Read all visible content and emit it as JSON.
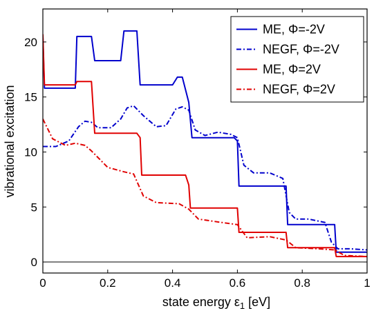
{
  "chart_data": {
    "type": "line",
    "xlabel_main": "state energy ε",
    "xlabel_sub": "1",
    "xlabel_unit": " [eV]",
    "ylabel": "vibrational excitation",
    "xlim": [
      0,
      1
    ],
    "ylim": [
      -1,
      23
    ],
    "xticks": [
      0,
      0.2,
      0.4,
      0.6,
      0.8,
      1
    ],
    "xtick_labels": [
      "0",
      "0.2",
      "0.4",
      "0.6",
      "0.8",
      "1"
    ],
    "yticks": [
      0,
      5,
      10,
      15,
      20
    ],
    "ytick_labels": [
      "0",
      "5",
      "10",
      "15",
      "20"
    ],
    "grid": false,
    "legend_position": "top-right",
    "zero_line": true,
    "series": [
      {
        "name": "ME, Φ=-2V",
        "color": "#0000cc",
        "dash": "solid",
        "x": [
          0,
          0.005,
          0.1,
          0.105,
          0.15,
          0.16,
          0.24,
          0.25,
          0.29,
          0.3,
          0.4,
          0.415,
          0.43,
          0.45,
          0.46,
          0.59,
          0.6,
          0.605,
          0.75,
          0.755,
          0.9,
          0.905,
          1.0
        ],
        "y": [
          20.5,
          15.8,
          15.8,
          20.5,
          20.5,
          18.3,
          18.3,
          21.0,
          21.0,
          16.1,
          16.1,
          16.8,
          16.8,
          14.5,
          11.3,
          11.3,
          11.0,
          6.9,
          6.9,
          3.4,
          3.4,
          0.9,
          0.9
        ]
      },
      {
        "name": "NEGF, Φ=-2V",
        "color": "#0000cc",
        "dash": "dashdot",
        "x": [
          0,
          0.04,
          0.08,
          0.11,
          0.13,
          0.15,
          0.17,
          0.21,
          0.24,
          0.26,
          0.28,
          0.31,
          0.35,
          0.38,
          0.41,
          0.43,
          0.45,
          0.47,
          0.5,
          0.54,
          0.56,
          0.58,
          0.6,
          0.62,
          0.65,
          0.7,
          0.74,
          0.76,
          0.78,
          0.82,
          0.87,
          0.89,
          0.91,
          0.95,
          1.0
        ],
        "y": [
          10.5,
          10.5,
          11.0,
          12.3,
          12.8,
          12.7,
          12.2,
          12.2,
          13.0,
          14.0,
          14.2,
          13.3,
          12.3,
          12.4,
          13.9,
          14.1,
          13.8,
          12.0,
          11.5,
          11.8,
          11.7,
          11.6,
          11.3,
          8.8,
          8.1,
          8.1,
          7.6,
          4.5,
          3.9,
          3.9,
          3.6,
          1.8,
          1.2,
          1.2,
          1.1
        ]
      },
      {
        "name": "ME, Φ=2V",
        "color": "#e00000",
        "dash": "solid",
        "x": [
          0,
          0.005,
          0.1,
          0.105,
          0.15,
          0.16,
          0.29,
          0.3,
          0.305,
          0.44,
          0.45,
          0.455,
          0.6,
          0.605,
          0.75,
          0.755,
          0.9,
          0.905,
          1.0
        ],
        "y": [
          20.7,
          16.1,
          16.1,
          16.4,
          16.4,
          11.7,
          11.7,
          11.3,
          7.9,
          7.9,
          7.0,
          4.9,
          4.9,
          2.7,
          2.7,
          1.3,
          1.3,
          0.5,
          0.5
        ]
      },
      {
        "name": "NEGF, Φ=2V",
        "color": "#e00000",
        "dash": "dashdot",
        "x": [
          0,
          0.03,
          0.07,
          0.1,
          0.13,
          0.15,
          0.2,
          0.25,
          0.28,
          0.31,
          0.35,
          0.42,
          0.45,
          0.48,
          0.55,
          0.6,
          0.63,
          0.7,
          0.75,
          0.78,
          0.85,
          0.9,
          0.93,
          1.0
        ],
        "y": [
          13.0,
          11.2,
          10.6,
          10.8,
          10.6,
          10.1,
          8.6,
          8.2,
          8.0,
          6.0,
          5.4,
          5.3,
          4.8,
          3.9,
          3.6,
          3.4,
          2.2,
          2.3,
          2.0,
          1.3,
          1.2,
          1.1,
          0.6,
          0.5
        ]
      }
    ]
  }
}
